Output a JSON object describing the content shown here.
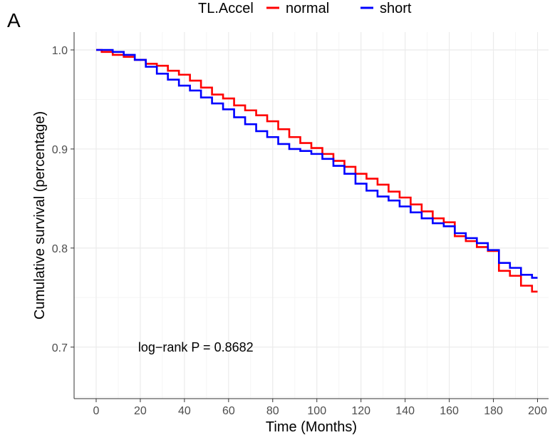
{
  "chart_data": {
    "type": "line",
    "subtype": "kaplan-meier step curve",
    "panel_label": "A",
    "title": "",
    "xlabel": "Time (Months)",
    "ylabel": "Cumulative survival (percentage)",
    "xlim": [
      -10,
      205
    ],
    "ylim": [
      0.648,
      1.018
    ],
    "xticks": [
      0,
      20,
      40,
      60,
      80,
      100,
      120,
      140,
      160,
      180,
      200
    ],
    "xtick_labels": [
      "0",
      "20",
      "40",
      "60",
      "80",
      "100",
      "120",
      "140",
      "160",
      "180",
      "200"
    ],
    "yticks": [
      0.7,
      0.8,
      0.9,
      1.0
    ],
    "ytick_labels": [
      "0.7",
      "0.8",
      "0.9",
      "1.0"
    ],
    "grid": true,
    "legend": {
      "title": "TL.Accel",
      "position": "top",
      "entries": [
        "normal",
        "short"
      ]
    },
    "annotation": {
      "text": "log−rank P =  0.8682",
      "x": 19,
      "y": 0.7
    },
    "colors": {
      "normal": "#ff0000",
      "short": "#0000ff",
      "grid_major": "#ebebeb",
      "grid_minor": "#f5f5f5",
      "axis": "#333333"
    },
    "series": [
      {
        "name": "normal",
        "color": "#ff0000",
        "x": [
          0,
          5,
          10,
          15,
          20,
          25,
          30,
          35,
          40,
          45,
          50,
          55,
          60,
          65,
          70,
          75,
          80,
          85,
          90,
          95,
          100,
          105,
          110,
          115,
          120,
          125,
          130,
          135,
          140,
          145,
          150,
          155,
          160,
          165,
          170,
          175,
          180,
          185,
          190,
          195,
          200
        ],
        "y": [
          1.0,
          0.998,
          0.995,
          0.993,
          0.99,
          0.986,
          0.984,
          0.979,
          0.975,
          0.969,
          0.962,
          0.955,
          0.951,
          0.944,
          0.939,
          0.934,
          0.928,
          0.92,
          0.912,
          0.906,
          0.901,
          0.895,
          0.888,
          0.882,
          0.875,
          0.87,
          0.864,
          0.857,
          0.851,
          0.844,
          0.837,
          0.83,
          0.826,
          0.812,
          0.807,
          0.801,
          0.797,
          0.777,
          0.772,
          0.762,
          0.756
        ]
      },
      {
        "name": "short",
        "color": "#0000ff",
        "x": [
          0,
          5,
          10,
          15,
          20,
          25,
          30,
          35,
          40,
          45,
          50,
          55,
          60,
          65,
          70,
          75,
          80,
          85,
          90,
          95,
          100,
          105,
          110,
          115,
          120,
          125,
          130,
          135,
          140,
          145,
          150,
          155,
          160,
          165,
          170,
          175,
          180,
          185,
          190,
          195,
          200
        ],
        "y": [
          1.0,
          1.0,
          0.998,
          0.995,
          0.99,
          0.983,
          0.976,
          0.97,
          0.964,
          0.959,
          0.952,
          0.946,
          0.94,
          0.932,
          0.925,
          0.918,
          0.912,
          0.905,
          0.9,
          0.898,
          0.895,
          0.89,
          0.883,
          0.875,
          0.865,
          0.858,
          0.852,
          0.848,
          0.842,
          0.836,
          0.83,
          0.825,
          0.822,
          0.815,
          0.81,
          0.805,
          0.798,
          0.785,
          0.78,
          0.773,
          0.77
        ]
      }
    ]
  }
}
